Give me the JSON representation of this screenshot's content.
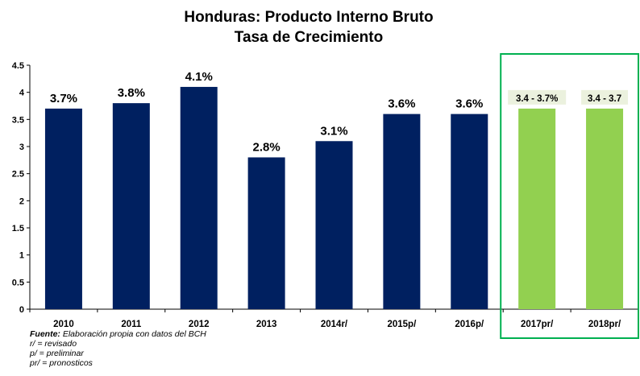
{
  "chart_data": {
    "type": "bar",
    "title_line1": "Honduras: Producto  Interno Bruto",
    "title_line2": "Tasa de Crecimiento",
    "categories": [
      "2010",
      "2011",
      "2012",
      "2013",
      "2014r/",
      "2015p/",
      "2016p/",
      "2017pr/",
      "2018pr/"
    ],
    "values": [
      3.7,
      3.8,
      4.1,
      2.8,
      3.1,
      3.6,
      3.6,
      3.7,
      3.7
    ],
    "data_labels": [
      "3.7%",
      "3.8%",
      "4.1%",
      "2.8%",
      "3.1%",
      "3.6%",
      "3.6%",
      "3.4 - 3.7%",
      "3.4 - 3.7"
    ],
    "forecast_flags": [
      false,
      false,
      false,
      false,
      false,
      false,
      false,
      true,
      true
    ],
    "yticks": [
      "0",
      "0.5",
      "1",
      "1.5",
      "2",
      "2.5",
      "3",
      "3.5",
      "4",
      "4.5"
    ],
    "ylim": [
      0,
      4.5
    ],
    "grid": false,
    "legend": "none",
    "colors": {
      "actual": "#002060",
      "forecast": "#92d050",
      "forecast_label_bg": "#ebf1de",
      "forecast_box": "#00b050"
    }
  },
  "notes": {
    "fuente_label": "Fuente:",
    "fuente_text": " Elaboración propia con datos del BCH",
    "line_r": "r/ = revisado",
    "line_p": "p/ = preliminar",
    "line_pr": "pr/ = pronosticos"
  }
}
